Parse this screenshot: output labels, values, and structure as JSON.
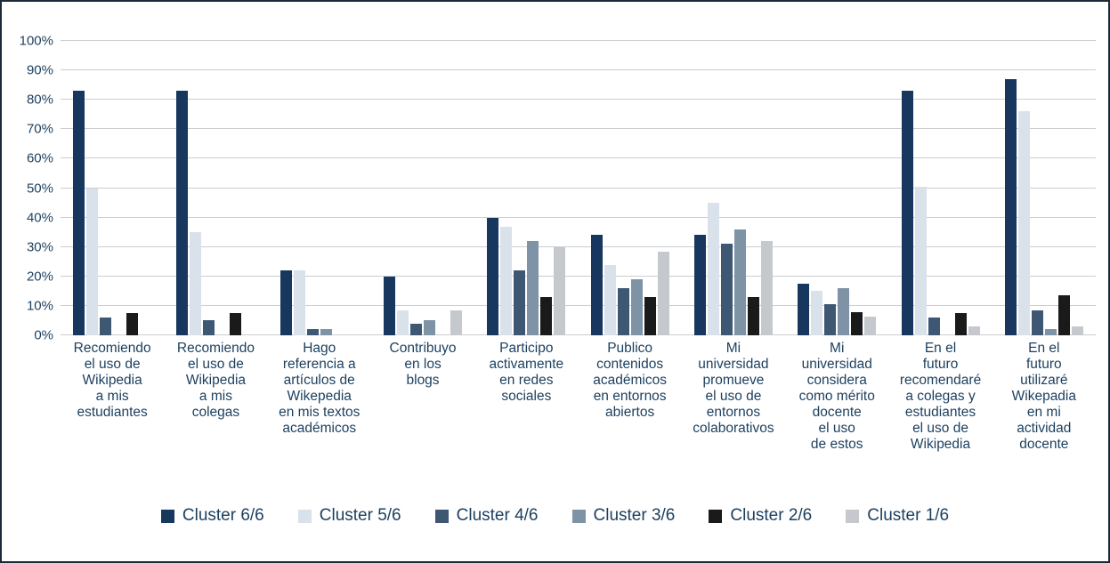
{
  "chart_data": {
    "type": "bar",
    "title": "",
    "xlabel": "",
    "ylabel": "",
    "ylim": [
      0,
      100
    ],
    "grid": true,
    "legend_position": "bottom",
    "ytick_labels": [
      "0%",
      "10%",
      "20%",
      "30%",
      "40%",
      "50%",
      "60%",
      "70%",
      "80%",
      "90%",
      "100%"
    ],
    "ytick_values": [
      0,
      10,
      20,
      30,
      40,
      50,
      60,
      70,
      80,
      90,
      100
    ],
    "categories": [
      "Recomiendo\nel uso de\nWikipedia\na mis\nestudiantes",
      "Recomiendo\nel uso de\nWikipedia\na mis\ncolegas",
      "Hago\nreferencia a\nartículos de\nWikepedia\nen mis textos\nacadémicos",
      "Contribuyo\nen los\nblogs",
      "Participo\nactivamente\nen redes\nsociales",
      "Publico\ncontenidos\nacadémicos\nen entornos\nabiertos",
      "Mi\nuniversidad\npromueve\nel uso de\nentornos\ncolaborativos",
      "Mi\nuniversidad\nconsidera\ncomo mérito\ndocente\nel uso\nde estos",
      "En el\nfuturo\nrecomendaré\na colegas y\nestudiantes\nel uso de\nWikipedia",
      "En el\nfuturo\nutilizaré\nWikepadia\nen mi\nactividad\ndocente"
    ],
    "series": [
      {
        "name": "Cluster 6/6",
        "color": "#17375E",
        "values": [
          83,
          83,
          22,
          20,
          40,
          34,
          34,
          17.5,
          83,
          87
        ]
      },
      {
        "name": "Cluster 5/6",
        "color": "#D9E1EA",
        "values": [
          50,
          35,
          22,
          8.5,
          37,
          24,
          45,
          15,
          50.5,
          76
        ]
      },
      {
        "name": "Cluster 4/6",
        "color": "#3E5874",
        "values": [
          6,
          5,
          2,
          4,
          22,
          16,
          31,
          10.5,
          6,
          8.5
        ]
      },
      {
        "name": "Cluster 3/6",
        "color": "#7E93A6",
        "values": [
          0,
          0,
          2,
          5,
          32,
          19,
          36,
          16,
          0,
          2
        ]
      },
      {
        "name": "Cluster 2/6",
        "color": "#1A1A1A",
        "values": [
          7.5,
          7.5,
          0,
          0,
          13,
          13,
          13,
          8,
          7.5,
          13.5
        ]
      },
      {
        "name": "Cluster 1/6",
        "color": "#C5C8CC",
        "values": [
          0,
          0,
          0,
          8.5,
          30,
          28.5,
          32,
          6.5,
          3,
          3
        ]
      }
    ]
  }
}
